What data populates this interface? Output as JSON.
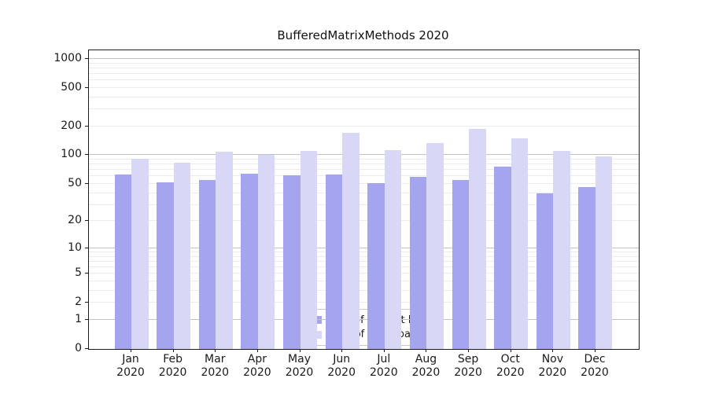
{
  "title": "BufferedMatrixMethods 2020",
  "colors": {
    "distinct_ips": "#a5a5ef",
    "downloads": "#d8d8f6",
    "grid_major": "#c2c2c2",
    "grid_minor": "#ececec",
    "axis": "#1a1a1a"
  },
  "legend": {
    "items": [
      {
        "label": "Nb of distinct IPs",
        "color_key": "distinct_ips"
      },
      {
        "label": "Nb of downloads",
        "color_key": "downloads"
      }
    ]
  },
  "chart_data": {
    "type": "bar",
    "title": "BufferedMatrixMethods 2020",
    "categories": [
      "Jan",
      "Feb",
      "Mar",
      "Apr",
      "May",
      "Jun",
      "Jul",
      "Aug",
      "Sep",
      "Oct",
      "Nov",
      "Dec"
    ],
    "category_year": "2020",
    "series": [
      {
        "name": "Nb of distinct IPs",
        "color_key": "distinct_ips",
        "values": [
          63,
          52,
          55,
          64,
          62,
          63,
          51,
          59,
          55,
          76,
          40,
          46
        ]
      },
      {
        "name": "Nb of downloads",
        "color_key": "downloads",
        "values": [
          92,
          83,
          108,
          100,
          111,
          170,
          114,
          135,
          187,
          150,
          110,
          98
        ]
      }
    ],
    "y_ticks": [
      0,
      1,
      2,
      5,
      10,
      20,
      50,
      100,
      200,
      500,
      1000
    ],
    "y_scale": "log10(value+1)",
    "ylim": [
      0,
      1226
    ],
    "xlabel": "",
    "ylabel": "",
    "grid": "horizontal, major and minor",
    "legend_position": "lower center"
  }
}
